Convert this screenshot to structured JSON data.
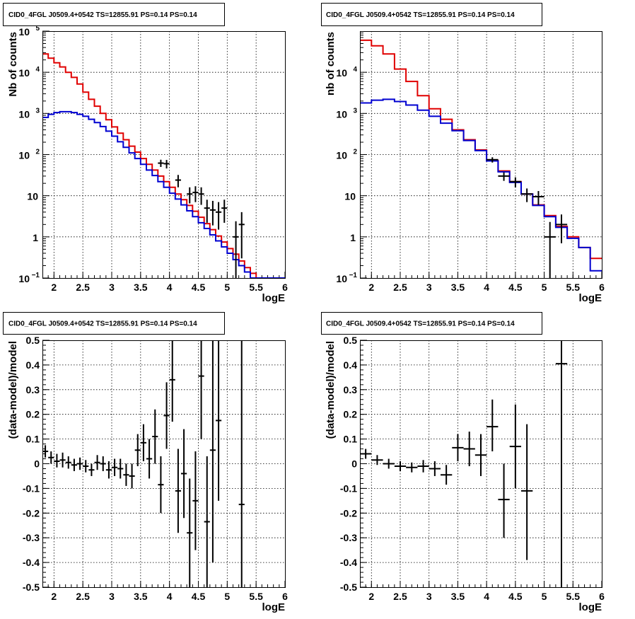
{
  "chart_data": [
    {
      "type": "line",
      "title": "CID0_4FGL J0509.4+0542 TS=12855.91 PS=0.14 PS=0.14",
      "xlabel": "logE",
      "ylabel": "Nb of counts",
      "xlim": [
        1.8,
        6.0
      ],
      "ylim": [
        0.1,
        100000
      ],
      "yscale": "log",
      "grid": true,
      "xticks": [
        "2",
        "2.5",
        "3",
        "3.5",
        "4",
        "4.5",
        "5",
        "5.5",
        "6"
      ],
      "yticks": [
        {
          "v": 0.1,
          "base": "10",
          "exp": "−1"
        },
        {
          "v": 1,
          "base": "1",
          "exp": ""
        },
        {
          "v": 10,
          "base": "10",
          "exp": ""
        },
        {
          "v": 100,
          "base": "10",
          "exp": "2"
        },
        {
          "v": 1000,
          "base": "10",
          "exp": "3"
        },
        {
          "v": 10000,
          "base": "10",
          "exp": "4"
        },
        {
          "v": 100000,
          "base": "10",
          "exp": "5"
        }
      ],
      "bin_width": 0.1,
      "bin_start": 1.8,
      "series": [
        {
          "color": "#e00000",
          "kind": "step",
          "values": [
            28000,
            22000,
            17000,
            13500,
            10000,
            7500,
            5200,
            3300,
            2200,
            1500,
            1000,
            700,
            470,
            330,
            230,
            160,
            115,
            80,
            58,
            42,
            30,
            22,
            16,
            11,
            8,
            5.8,
            4.2,
            3.0,
            2.1,
            1.5,
            1.05,
            0.75,
            0.52,
            0.38,
            0.26,
            0.18,
            0.13,
            0.1,
            0.1,
            0.1,
            0.1,
            0.1
          ]
        },
        {
          "color": "#0000d0",
          "kind": "step",
          "values": [
            800,
            950,
            1050,
            1100,
            1100,
            1050,
            950,
            850,
            720,
            600,
            480,
            370,
            280,
            205,
            150,
            110,
            80,
            58,
            42,
            31,
            22,
            16,
            11.5,
            8.3,
            6.0,
            4.3,
            3.1,
            2.2,
            1.6,
            1.12,
            0.8,
            0.57,
            0.4,
            0.28,
            0.2,
            0.14,
            0.1,
            0.1,
            0.1,
            0.1,
            0.1,
            0.1
          ]
        },
        {
          "color": "#000000",
          "kind": "points",
          "xerr": 0.05,
          "points": [
            {
              "x": 3.85,
              "y": 62,
              "lo": 50,
              "hi": 75
            },
            {
              "x": 3.95,
              "y": 60,
              "lo": 46,
              "hi": 74
            },
            {
              "x": 4.15,
              "y": 24,
              "lo": 16,
              "hi": 32
            },
            {
              "x": 4.35,
              "y": 11,
              "lo": 6.5,
              "hi": 16
            },
            {
              "x": 4.45,
              "y": 12,
              "lo": 7,
              "hi": 17
            },
            {
              "x": 4.55,
              "y": 11,
              "lo": 6,
              "hi": 16
            },
            {
              "x": 4.65,
              "y": 5,
              "lo": 2.2,
              "hi": 8
            },
            {
              "x": 4.75,
              "y": 4.5,
              "lo": 1.9,
              "hi": 7.5
            },
            {
              "x": 4.85,
              "y": 4,
              "lo": 1.5,
              "hi": 7
            },
            {
              "x": 4.95,
              "y": 5,
              "lo": 2.2,
              "hi": 8
            },
            {
              "x": 5.25,
              "y": 2,
              "lo": 0.3,
              "hi": 4
            },
            {
              "x": 5.15,
              "y": 1,
              "lo": 0.1,
              "hi": 2.4
            }
          ]
        }
      ]
    },
    {
      "type": "line",
      "title": "CID0_4FGL J0509.4+0542 TS=12855.91 PS=0.14 PS=0.14",
      "xlabel": "logE",
      "ylabel": "nb of counts",
      "xlim": [
        1.8,
        6.0
      ],
      "ylim": [
        0.1,
        100000
      ],
      "yscale": "log",
      "grid": true,
      "xticks": [
        "2",
        "2.5",
        "3",
        "3.5",
        "4",
        "4.5",
        "5",
        "5.5",
        "6"
      ],
      "yticks": [
        {
          "v": 0.1,
          "base": "10",
          "exp": "−1"
        },
        {
          "v": 1,
          "base": "1",
          "exp": ""
        },
        {
          "v": 10,
          "base": "10",
          "exp": ""
        },
        {
          "v": 100,
          "base": "10",
          "exp": "2"
        },
        {
          "v": 1000,
          "base": "10",
          "exp": "3"
        },
        {
          "v": 10000,
          "base": "10",
          "exp": "4"
        }
      ],
      "bin_width": 0.2,
      "bin_start": 1.8,
      "series": [
        {
          "color": "#e00000",
          "kind": "step",
          "values": [
            60000,
            44000,
            28000,
            12000,
            6000,
            2700,
            1300,
            720,
            400,
            230,
            130,
            72,
            40,
            22,
            11,
            6,
            3.3,
            1.8,
            1.0,
            0.55,
            0.3
          ]
        },
        {
          "color": "#0000d0",
          "kind": "step",
          "values": [
            1800,
            2100,
            2200,
            1950,
            1600,
            1200,
            850,
            580,
            380,
            220,
            125,
            70,
            38,
            21,
            11,
            5.8,
            3.1,
            1.7,
            0.92,
            0.55,
            0.15
          ]
        },
        {
          "color": "#000000",
          "kind": "points",
          "xerr": 0.1,
          "points": [
            {
              "x": 4.1,
              "y": 75,
              "lo": 64,
              "hi": 86
            },
            {
              "x": 4.3,
              "y": 30,
              "lo": 23,
              "hi": 37
            },
            {
              "x": 4.5,
              "y": 22,
              "lo": 16,
              "hi": 28
            },
            {
              "x": 4.7,
              "y": 11,
              "lo": 7,
              "hi": 15
            },
            {
              "x": 4.9,
              "y": 9.5,
              "lo": 6,
              "hi": 13
            },
            {
              "x": 5.1,
              "y": 1,
              "lo": 0.1,
              "hi": 2.3
            },
            {
              "x": 5.3,
              "y": 2,
              "lo": 0.7,
              "hi": 3.5
            }
          ]
        }
      ]
    },
    {
      "type": "scatter",
      "title": "CID0_4FGL J0509.4+0542 TS=12855.91 PS=0.14 PS=0.14",
      "xlabel": "logE",
      "ylabel": "(data-model)/model",
      "xlim": [
        1.8,
        6.0
      ],
      "ylim": [
        -0.5,
        0.5
      ],
      "yscale": "linear",
      "grid": true,
      "xticks": [
        "2",
        "2.5",
        "3",
        "3.5",
        "4",
        "4.5",
        "5",
        "5.5",
        "6"
      ],
      "yticks": [
        "-0.5",
        "-0.4",
        "-0.3",
        "-0.2",
        "-0.1",
        "0",
        "0.1",
        "0.2",
        "0.3",
        "0.4",
        "0.5"
      ],
      "series": [
        {
          "color": "#000000",
          "kind": "points",
          "xerr": 0.05,
          "points": [
            {
              "x": 1.85,
              "y": 0.05,
              "lo": 0.025,
              "hi": 0.075
            },
            {
              "x": 1.95,
              "y": 0.025,
              "lo": 0.0,
              "hi": 0.05
            },
            {
              "x": 2.05,
              "y": 0.01,
              "lo": -0.015,
              "hi": 0.04
            },
            {
              "x": 2.15,
              "y": 0.015,
              "lo": -0.015,
              "hi": 0.045
            },
            {
              "x": 2.25,
              "y": 0.005,
              "lo": -0.02,
              "hi": 0.03
            },
            {
              "x": 2.35,
              "y": -0.005,
              "lo": -0.03,
              "hi": 0.02
            },
            {
              "x": 2.45,
              "y": 0.0,
              "lo": -0.025,
              "hi": 0.025
            },
            {
              "x": 2.55,
              "y": -0.01,
              "lo": -0.035,
              "hi": 0.015
            },
            {
              "x": 2.65,
              "y": -0.025,
              "lo": -0.05,
              "hi": 0.0
            },
            {
              "x": 2.75,
              "y": 0.005,
              "lo": -0.025,
              "hi": 0.035
            },
            {
              "x": 2.85,
              "y": 0.0,
              "lo": -0.03,
              "hi": 0.03
            },
            {
              "x": 2.95,
              "y": -0.025,
              "lo": -0.06,
              "hi": 0.01
            },
            {
              "x": 3.05,
              "y": -0.015,
              "lo": -0.05,
              "hi": 0.02
            },
            {
              "x": 3.15,
              "y": -0.02,
              "lo": -0.06,
              "hi": 0.02
            },
            {
              "x": 3.25,
              "y": -0.045,
              "lo": -0.09,
              "hi": 0.0
            },
            {
              "x": 3.35,
              "y": -0.05,
              "lo": -0.1,
              "hi": 0.0
            },
            {
              "x": 3.45,
              "y": 0.055,
              "lo": -0.01,
              "hi": 0.12
            },
            {
              "x": 3.55,
              "y": 0.085,
              "lo": 0.01,
              "hi": 0.16
            },
            {
              "x": 3.65,
              "y": 0.02,
              "lo": -0.06,
              "hi": 0.1
            },
            {
              "x": 3.75,
              "y": 0.11,
              "lo": 0.0,
              "hi": 0.22
            },
            {
              "x": 3.85,
              "y": -0.085,
              "lo": -0.2,
              "hi": 0.03
            },
            {
              "x": 3.95,
              "y": 0.195,
              "lo": 0.06,
              "hi": 0.33
            },
            {
              "x": 4.05,
              "y": 0.34,
              "lo": 0.17,
              "hi": 0.5
            },
            {
              "x": 4.15,
              "y": -0.11,
              "lo": -0.28,
              "hi": 0.06
            },
            {
              "x": 4.25,
              "y": -0.04,
              "lo": -0.22,
              "hi": 0.14
            },
            {
              "x": 4.35,
              "y": -0.28,
              "lo": -0.5,
              "hi": -0.06
            },
            {
              "x": 4.45,
              "y": -0.15,
              "lo": -0.35,
              "hi": 0.05
            },
            {
              "x": 4.55,
              "y": 0.355,
              "lo": 0.1,
              "hi": 0.5
            },
            {
              "x": 4.65,
              "y": -0.235,
              "lo": -0.5,
              "hi": 0.03
            },
            {
              "x": 4.75,
              "y": 0.055,
              "lo": -0.4,
              "hi": 0.5
            },
            {
              "x": 4.85,
              "y": 0.175,
              "lo": -0.15,
              "hi": 0.5
            },
            {
              "x": 5.25,
              "y": -0.165,
              "lo": -0.5,
              "hi": 0.5
            }
          ]
        }
      ]
    },
    {
      "type": "scatter",
      "title": "CID0_4FGL J0509.4+0542 TS=12855.91 PS=0.14 PS=0.14",
      "xlabel": "logE",
      "ylabel": "(data-model)/model",
      "xlim": [
        1.8,
        6.0
      ],
      "ylim": [
        -0.5,
        0.5
      ],
      "yscale": "linear",
      "grid": true,
      "xticks": [
        "2",
        "2.5",
        "3",
        "3.5",
        "4",
        "4.5",
        "5",
        "5.5",
        "6"
      ],
      "yticks": [
        "-0.5",
        "-0.4",
        "-0.3",
        "-0.2",
        "-0.1",
        "0",
        "0.1",
        "0.2",
        "0.3",
        "0.4",
        "0.5"
      ],
      "series": [
        {
          "color": "#000000",
          "kind": "points",
          "xerr": 0.1,
          "points": [
            {
              "x": 1.9,
              "y": 0.04,
              "lo": 0.02,
              "hi": 0.06
            },
            {
              "x": 2.1,
              "y": 0.015,
              "lo": -0.005,
              "hi": 0.035
            },
            {
              "x": 2.3,
              "y": 0.0,
              "lo": -0.02,
              "hi": 0.02
            },
            {
              "x": 2.5,
              "y": -0.01,
              "lo": -0.03,
              "hi": 0.01
            },
            {
              "x": 2.7,
              "y": -0.015,
              "lo": -0.035,
              "hi": 0.005
            },
            {
              "x": 2.9,
              "y": -0.01,
              "lo": -0.035,
              "hi": 0.015
            },
            {
              "x": 3.1,
              "y": -0.02,
              "lo": -0.05,
              "hi": 0.01
            },
            {
              "x": 3.3,
              "y": -0.045,
              "lo": -0.085,
              "hi": -0.005
            },
            {
              "x": 3.5,
              "y": 0.065,
              "lo": 0.01,
              "hi": 0.12
            },
            {
              "x": 3.7,
              "y": 0.06,
              "lo": -0.01,
              "hi": 0.13
            },
            {
              "x": 3.9,
              "y": 0.035,
              "lo": -0.05,
              "hi": 0.12
            },
            {
              "x": 4.1,
              "y": 0.15,
              "lo": 0.05,
              "hi": 0.26
            },
            {
              "x": 4.3,
              "y": -0.145,
              "lo": -0.3,
              "hi": 0.0
            },
            {
              "x": 4.5,
              "y": 0.07,
              "lo": -0.1,
              "hi": 0.24
            },
            {
              "x": 4.7,
              "y": -0.11,
              "lo": -0.39,
              "hi": 0.16
            },
            {
              "x": 5.3,
              "y": 0.405,
              "lo": -0.5,
              "hi": 0.5
            }
          ]
        }
      ]
    }
  ]
}
